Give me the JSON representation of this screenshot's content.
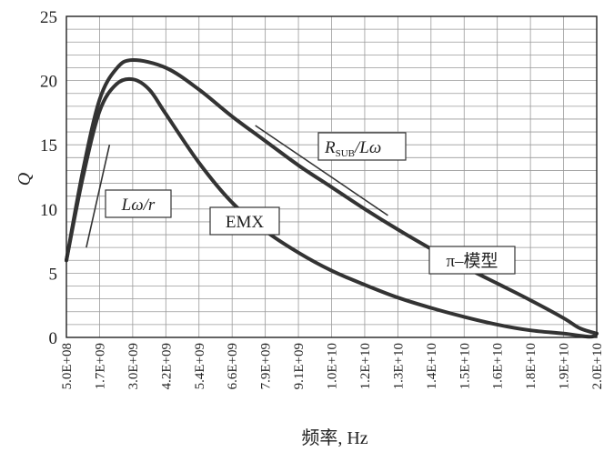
{
  "chart_data": {
    "type": "line",
    "title": "",
    "xlabel": "频率, Hz",
    "ylabel": "Q",
    "x_ticks": [
      "5.0E+08",
      "1.7E+09",
      "3.0E+09",
      "4.2E+09",
      "5.4E+09",
      "6.6E+09",
      "7.9E+09",
      "9.1E+09",
      "1.0E+10",
      "1.2E+10",
      "1.3E+10",
      "1.4E+10",
      "1.5E+10",
      "1.6E+10",
      "1.8E+10",
      "1.9E+10",
      "2.0E+10"
    ],
    "y_ticks": [
      "0",
      "5",
      "10",
      "15",
      "20",
      "25"
    ],
    "ylim": [
      0,
      25
    ],
    "grid": true,
    "series": [
      {
        "name": "π–模型",
        "points": [
          [
            0,
            6
          ],
          [
            0.5,
            13
          ],
          [
            1,
            18.5
          ],
          [
            1.5,
            20.9
          ],
          [
            2,
            21.6
          ],
          [
            3,
            21
          ],
          [
            4,
            19.3
          ],
          [
            5,
            17.2
          ],
          [
            6,
            15.3
          ],
          [
            7,
            13.4
          ],
          [
            8,
            11.7
          ],
          [
            9,
            10
          ],
          [
            10,
            8.4
          ],
          [
            11,
            6.9
          ],
          [
            12,
            5.5
          ],
          [
            13,
            4.2
          ],
          [
            14,
            2.9
          ],
          [
            15,
            1.5
          ],
          [
            15.5,
            0.7
          ],
          [
            16,
            0.3
          ]
        ]
      },
      {
        "name": "EMX",
        "points": [
          [
            0,
            6
          ],
          [
            0.5,
            12.5
          ],
          [
            1,
            17.6
          ],
          [
            1.5,
            19.7
          ],
          [
            2,
            20.1
          ],
          [
            2.5,
            19.3
          ],
          [
            3,
            17.4
          ],
          [
            4,
            13.6
          ],
          [
            5,
            10.5
          ],
          [
            6,
            8.3
          ],
          [
            7,
            6.6
          ],
          [
            8,
            5.2
          ],
          [
            9,
            4.1
          ],
          [
            10,
            3.1
          ],
          [
            11,
            2.3
          ],
          [
            12,
            1.6
          ],
          [
            13,
            1
          ],
          [
            14,
            0.55
          ],
          [
            15,
            0.3
          ],
          [
            15.8,
            0.05
          ],
          [
            16,
            0.3
          ]
        ]
      }
    ],
    "annotations": [
      {
        "text": "Lω/r",
        "line": [
          [
            0.6,
            7
          ],
          [
            1.3,
            15
          ]
        ]
      },
      {
        "text": "R",
        "subscript": "SUB",
        "suffix": "/Lω",
        "line": [
          [
            5.7,
            16.5
          ],
          [
            9.7,
            9.5
          ]
        ]
      },
      {
        "text": "EMX"
      },
      {
        "text": "π–模型"
      }
    ]
  }
}
